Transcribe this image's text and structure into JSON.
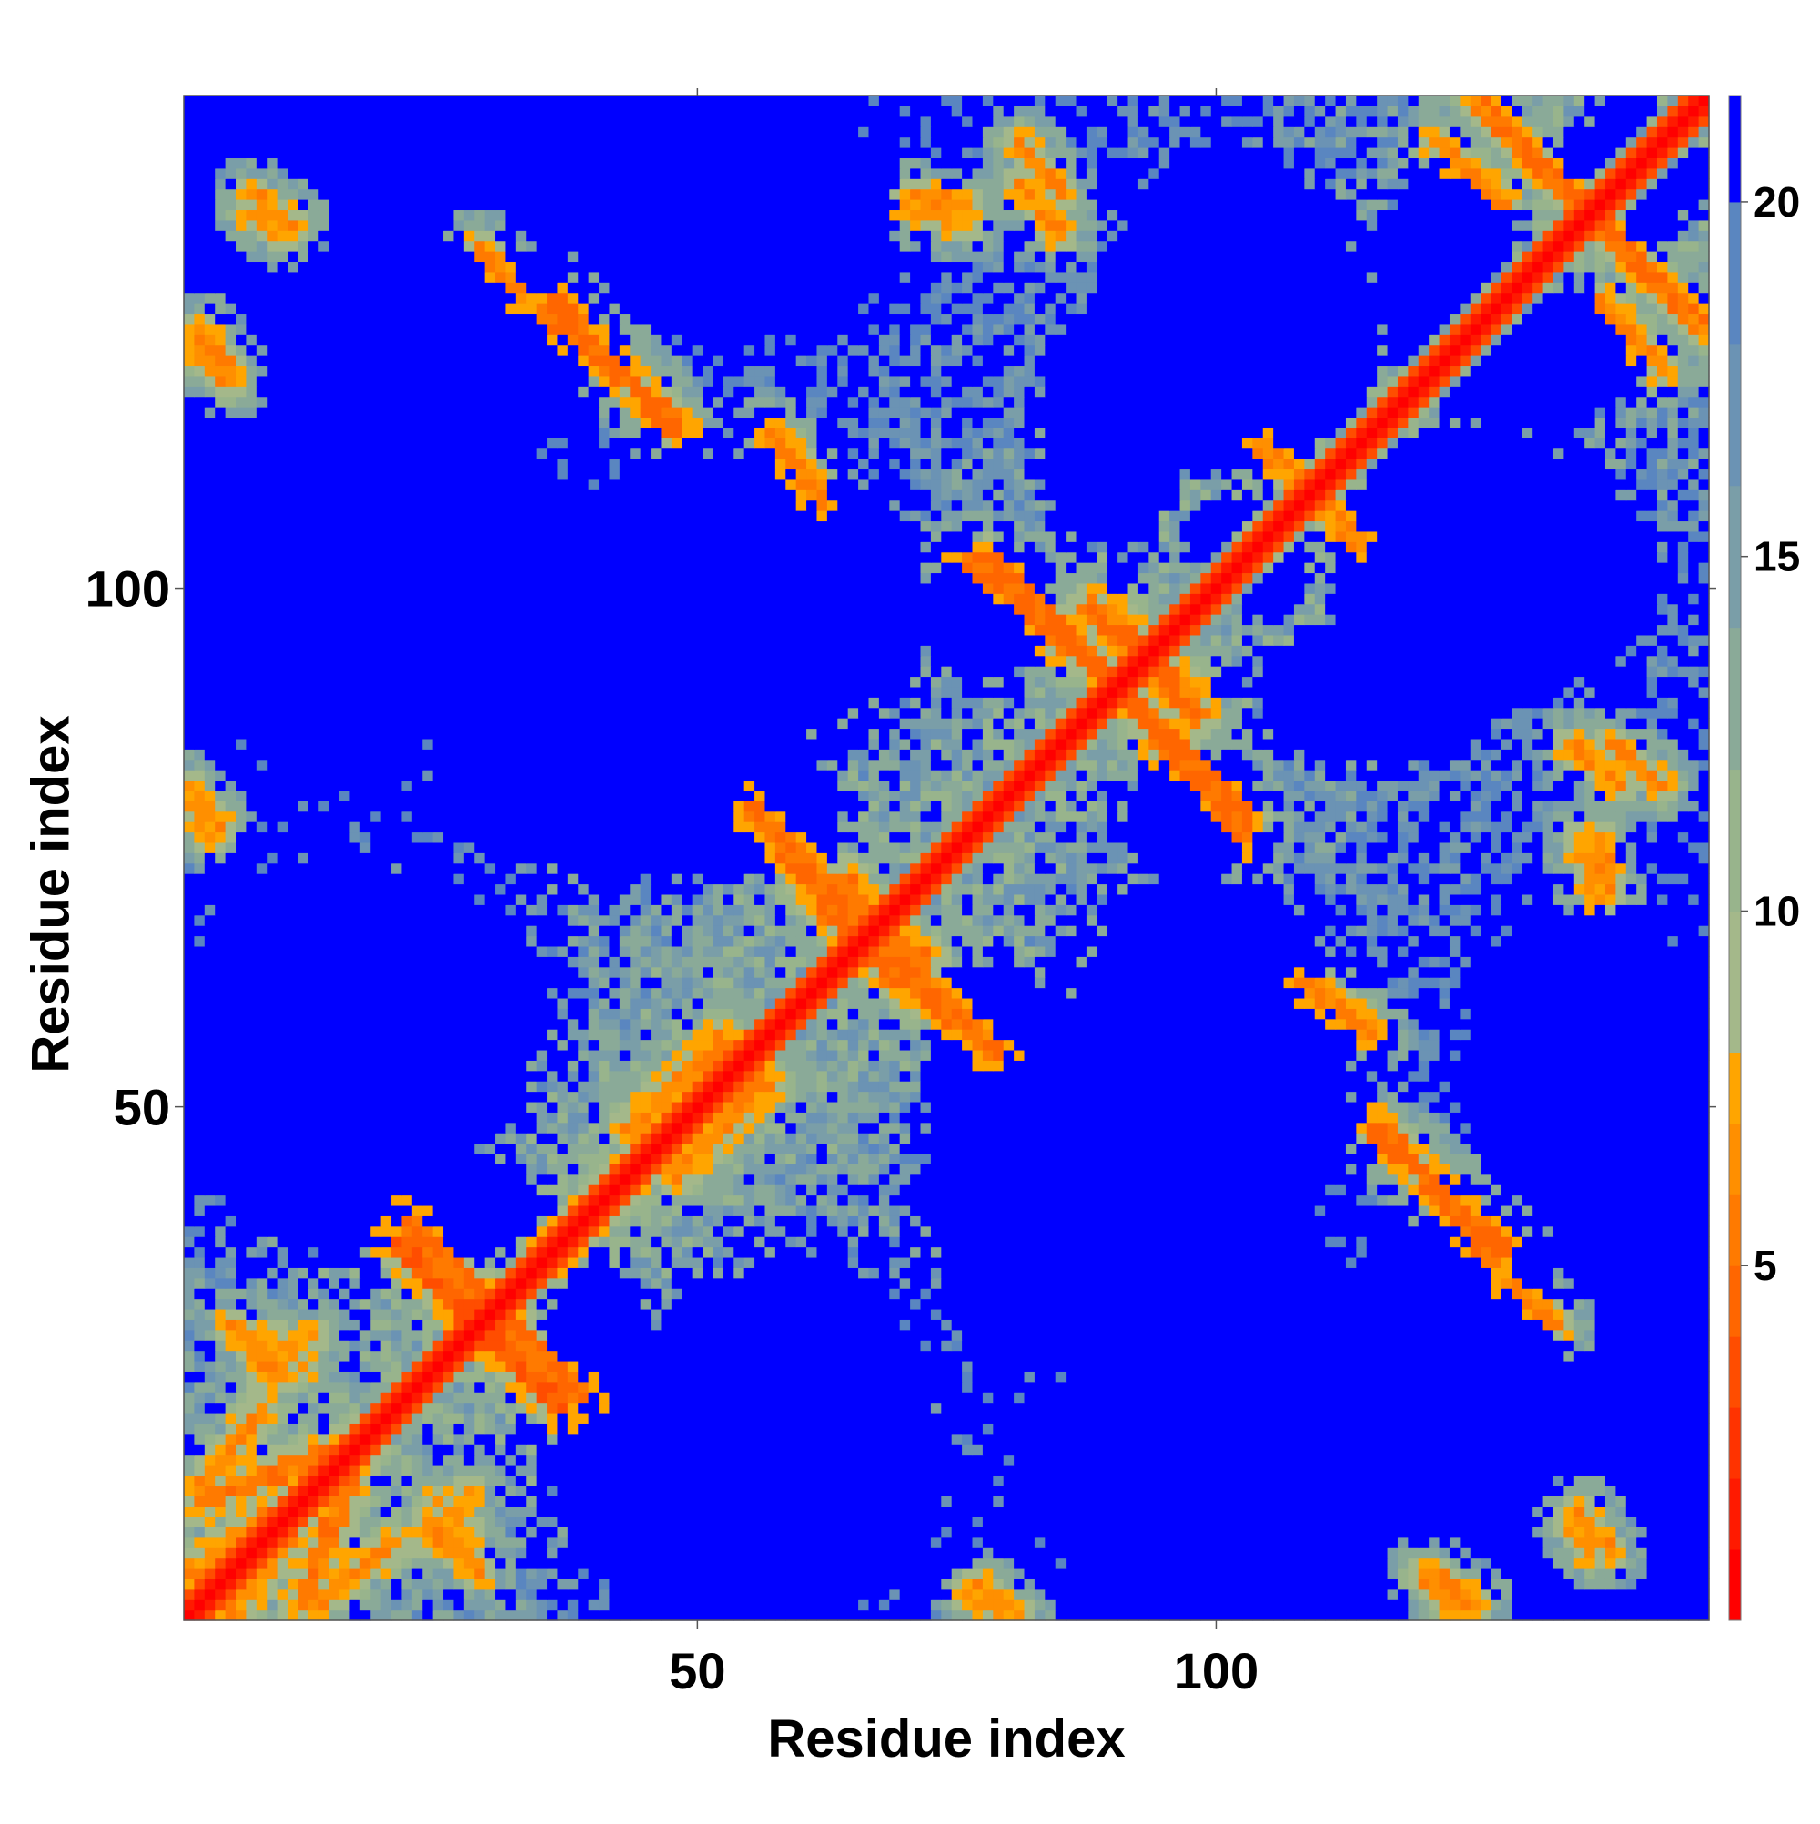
{
  "chart_data": {
    "type": "heatmap",
    "title": "",
    "xlabel": "Residue index",
    "ylabel": "Residue index",
    "n_residues": 147,
    "xlim": [
      1,
      147
    ],
    "ylim": [
      1,
      147
    ],
    "x_ticks": [
      50,
      100
    ],
    "y_ticks": [
      50,
      100
    ],
    "colorbar": {
      "ticks": [
        5,
        10,
        15,
        20
      ],
      "range": [
        0,
        21.5
      ],
      "levels": [
        {
          "from": 0,
          "to": 1,
          "color": "#ff0000"
        },
        {
          "from": 1,
          "to": 2,
          "color": "#ff1a00"
        },
        {
          "from": 2,
          "to": 3,
          "color": "#ff3300"
        },
        {
          "from": 3,
          "to": 4,
          "color": "#ff4d00"
        },
        {
          "from": 4,
          "to": 5,
          "color": "#ff6600"
        },
        {
          "from": 5,
          "to": 6,
          "color": "#ff7a00"
        },
        {
          "from": 6,
          "to": 7,
          "color": "#ff8f00"
        },
        {
          "from": 7,
          "to": 8,
          "color": "#ffa500"
        },
        {
          "from": 8,
          "to": 10,
          "color": "#a4b88a"
        },
        {
          "from": 10,
          "to": 12,
          "color": "#98b48c"
        },
        {
          "from": 12,
          "to": 14,
          "color": "#8aaa98"
        },
        {
          "from": 14,
          "to": 16,
          "color": "#7a9ea8"
        },
        {
          "from": 16,
          "to": 18,
          "color": "#6b93b4"
        },
        {
          "from": 18,
          "to": 20,
          "color": "#5a86c0"
        },
        {
          "from": 20,
          "to": 21.5,
          "color": "#0000ff"
        }
      ]
    },
    "matrix_description": "symmetric residue-residue distance map (angstrom); diagonal = 0, far contacts saturate at >20",
    "contact_segments": [
      {
        "x": [
          2,
          18
        ],
        "y": [
          12,
          18
        ],
        "width": 1.6,
        "peak": 4.5
      },
      {
        "x": [
          5,
          16
        ],
        "y": [
          1,
          16
        ],
        "width": 1.5,
        "peak": 5.5
      },
      {
        "x": [
          13,
          21
        ],
        "y": [
          2,
          8
        ],
        "width": 1.3,
        "peak": 5.0
      },
      {
        "x": [
          24,
          29
        ],
        "y": [
          10,
          5
        ],
        "width": 1.2,
        "peak": 5.5
      },
      {
        "x": [
          8,
          13
        ],
        "y": [
          24,
          28
        ],
        "width": 1.2,
        "peak": 6.0
      },
      {
        "x": [
          21,
          31
        ],
        "y": [
          37,
          27
        ],
        "width": 1.6,
        "peak": 3.5
      },
      {
        "x": [
          30,
          39
        ],
        "y": [
          31,
          22
        ],
        "width": 1.6,
        "peak": 4.0
      },
      {
        "x": [
          36,
          52
        ],
        "y": [
          36,
          52
        ],
        "width": 2.0,
        "peak": 5.0
      },
      {
        "x": [
          48,
          56
        ],
        "y": [
          44,
          52
        ],
        "width": 1.8,
        "peak": 5.5
      },
      {
        "x": [
          55,
          69
        ],
        "y": [
          79,
          62
        ],
        "width": 1.5,
        "peak": 4.0
      },
      {
        "x": [
          67,
          79
        ],
        "y": [
          67,
          55
        ],
        "width": 1.5,
        "peak": 4.5
      },
      {
        "x": [
          62,
          72
        ],
        "y": [
          71,
          64
        ],
        "width": 1.6,
        "peak": 4.5
      },
      {
        "x": [
          78,
          93
        ],
        "y": [
          103,
          88
        ],
        "width": 1.5,
        "peak": 4.0
      },
      {
        "x": [
          94,
          103
        ],
        "y": [
          86,
          76
        ],
        "width": 1.5,
        "peak": 4.0
      },
      {
        "x": [
          88,
          97
        ],
        "y": [
          98,
          90
        ],
        "width": 1.8,
        "peak": 4.5
      },
      {
        "x": [
          108,
          114
        ],
        "y": [
          62,
          58
        ],
        "width": 1.3,
        "peak": 5.0
      },
      {
        "x": [
          116,
          127
        ],
        "y": [
          48,
          35
        ],
        "width": 1.5,
        "peak": 4.0
      },
      {
        "x": [
          128,
          133
        ],
        "y": [
          33,
          29
        ],
        "width": 1.2,
        "peak": 5.0
      },
      {
        "x": [
          104,
          110
        ],
        "y": [
          114,
          108
        ],
        "width": 1.3,
        "peak": 5.5
      },
      {
        "x": [
          134,
          139
        ],
        "y": [
          85,
          81
        ],
        "width": 1.2,
        "peak": 5.5
      },
      {
        "x": [
          135,
          137
        ],
        "y": [
          76,
          70
        ],
        "width": 1.2,
        "peak": 6.0
      },
      {
        "x": [
          130,
          147
        ],
        "y": [
          142,
          125
        ],
        "width": 1.4,
        "peak": 4.5
      },
      {
        "x": [
          121,
          128
        ],
        "y": [
          143,
          137
        ],
        "width": 1.2,
        "peak": 5.5
      },
      {
        "x": [
          36,
          48
        ],
        "y": [
          128,
          115
        ],
        "width": 1.5,
        "peak": 4.0
      },
      {
        "x": [
          29,
          32
        ],
        "y": [
          133,
          130
        ],
        "width": 1.2,
        "peak": 5.5
      },
      {
        "x": [
          2,
          5
        ],
        "y": [
          123,
          120
        ],
        "width": 1.2,
        "peak": 5.0
      },
      {
        "x": [
          7,
          11
        ],
        "y": [
          138,
          135
        ],
        "width": 1.2,
        "peak": 5.5
      },
      {
        "x": [
          57,
          62
        ],
        "y": [
          115,
          109
        ],
        "width": 1.3,
        "peak": 5.0
      },
      {
        "x": [
          71,
          76
        ],
        "y": [
          138,
          137
        ],
        "width": 1.1,
        "peak": 5.5
      },
      {
        "x": [
          81,
          85
        ],
        "y": [
          143,
          138
        ],
        "width": 1.2,
        "peak": 5.0
      },
      {
        "x": [
          1,
          4
        ],
        "y": [
          81,
          77
        ],
        "width": 1.1,
        "peak": 5.5
      },
      {
        "x": [
          121,
          125
        ],
        "y": [
          5,
          2
        ],
        "width": 1.2,
        "peak": 5.5
      },
      {
        "x": [
          134,
          136
        ],
        "y": [
          10,
          7
        ],
        "width": 1.1,
        "peak": 6.0
      },
      {
        "x": [
          76,
          80
        ],
        "y": [
          3,
          1
        ],
        "width": 1.1,
        "peak": 6.0
      },
      {
        "x": [
          25,
          28
        ],
        "y": [
          12,
          9
        ],
        "width": 1.1,
        "peak": 6.0
      }
    ],
    "blue_regions": [
      {
        "cx": 55,
        "cy": 15,
        "rx": 22,
        "ry": 18
      },
      {
        "cx": 96,
        "cy": 15,
        "rx": 18,
        "ry": 14
      },
      {
        "cx": 86,
        "cy": 42,
        "rx": 16,
        "ry": 20
      },
      {
        "cx": 20,
        "cy": 60,
        "rx": 18,
        "ry": 14
      },
      {
        "cx": 53,
        "cy": 99,
        "rx": 22,
        "ry": 16
      },
      {
        "cx": 22,
        "cy": 106,
        "rx": 15,
        "ry": 14
      },
      {
        "cx": 29,
        "cy": 124,
        "rx": 14,
        "ry": 10
      },
      {
        "cx": 55,
        "cy": 78,
        "rx": 10,
        "ry": 6
      },
      {
        "cx": 103,
        "cy": 125,
        "rx": 15,
        "ry": 14
      },
      {
        "cx": 56,
        "cy": 133,
        "rx": 15,
        "ry": 10
      },
      {
        "cx": 131,
        "cy": 101,
        "rx": 14,
        "ry": 12
      },
      {
        "cx": 115,
        "cy": 90,
        "rx": 12,
        "ry": 8
      },
      {
        "cx": 140,
        "cy": 57,
        "rx": 9,
        "ry": 12
      },
      {
        "cx": 131,
        "cy": 122,
        "rx": 10,
        "ry": 8
      },
      {
        "cx": 140,
        "cy": 140,
        "rx": 7,
        "ry": 7
      },
      {
        "cx": 40,
        "cy": 28,
        "rx": 5,
        "ry": 8
      },
      {
        "cx": 104,
        "cy": 103,
        "rx": 5,
        "ry": 6
      },
      {
        "cx": 78,
        "cy": 98,
        "rx": 6,
        "ry": 8
      }
    ]
  }
}
